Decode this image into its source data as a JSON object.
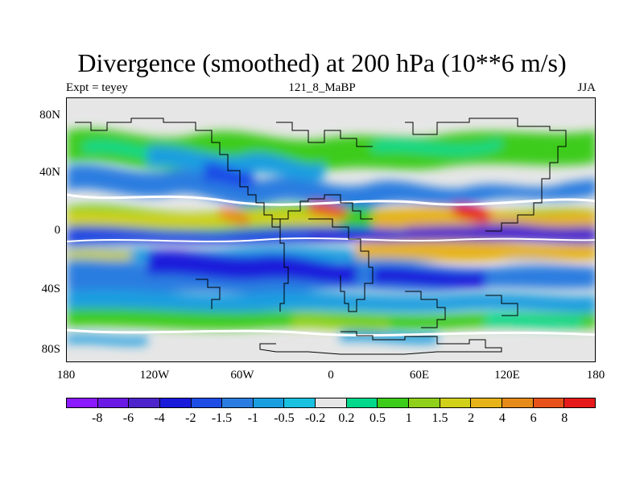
{
  "title": "Divergence (smoothed) at 200 hPa (10**6 m/s)",
  "subtitle_left": "Expt = teyey",
  "subtitle_center": "121_8_MaBP",
  "subtitle_right": "JJA",
  "y_ticks": [
    "80N",
    "40N",
    "0",
    "40S",
    "80S"
  ],
  "x_ticks": [
    "180",
    "120W",
    "60W",
    "0",
    "60E",
    "120E",
    "180"
  ],
  "colorbar": {
    "colors": [
      "#8c1aff",
      "#6b1ae6",
      "#4d24cc",
      "#1a1adb",
      "#1e4de6",
      "#2a7de0",
      "#1a9ee0",
      "#1ac0e0",
      "#e6e6e6",
      "#00d98c",
      "#3ccc1a",
      "#8fd11a",
      "#d1d11a",
      "#e6b31a",
      "#e68a1a",
      "#e6521a",
      "#e61a1a"
    ],
    "labels": [
      "-8",
      "-6",
      "-4",
      "-2",
      "-1.5",
      "-1",
      "-0.5",
      "-0.2",
      "0.2",
      "0.5",
      "1",
      "1.5",
      "2",
      "4",
      "6",
      "8"
    ]
  }
}
